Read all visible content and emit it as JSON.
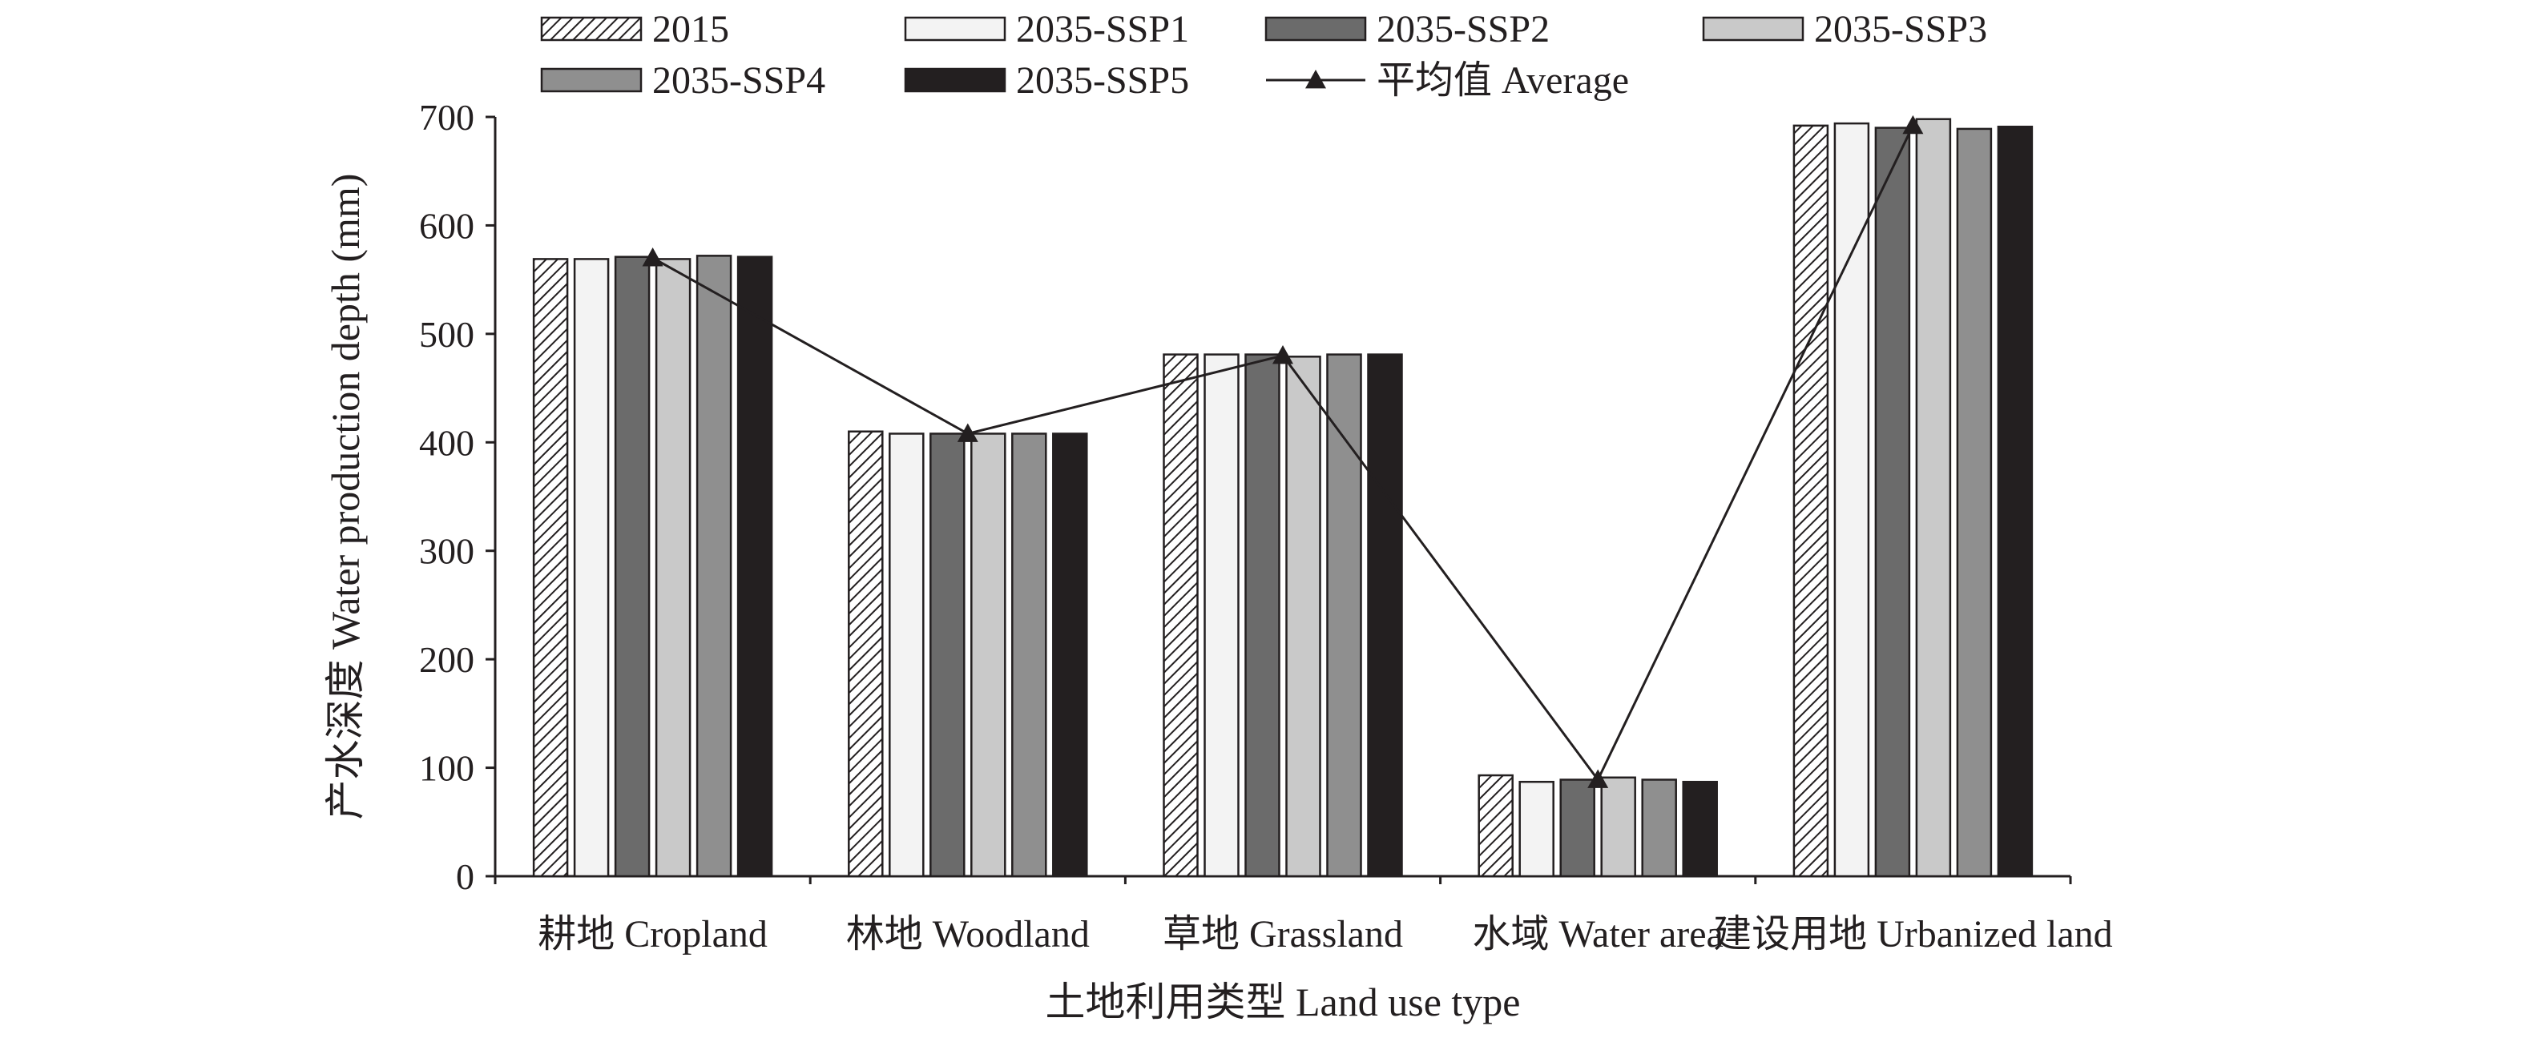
{
  "chart_data": {
    "type": "bar",
    "title": "",
    "xlabel": "土地利用类型 Land use type",
    "ylabel": "产水深度 Water production depth (mm)",
    "ylim": [
      0,
      700
    ],
    "yticks": [
      0,
      100,
      200,
      300,
      400,
      500,
      600,
      700
    ],
    "grid": false,
    "legend_position": "top",
    "categories": [
      "耕地 Cropland",
      "林地 Woodland",
      "草地 Grassland",
      "水域 Water area",
      "建设用地 Urbanized land"
    ],
    "series": [
      {
        "name": "2015",
        "values": [
          569,
          410,
          481,
          93,
          692
        ],
        "style": "hatch",
        "color": "#ffffff"
      },
      {
        "name": "2035-SSP1",
        "values": [
          569,
          408,
          481,
          87,
          694
        ],
        "style": "solid",
        "color": "#f3f3f3"
      },
      {
        "name": "2035-SSP2",
        "values": [
          571,
          408,
          481,
          89,
          690
        ],
        "style": "solid",
        "color": "#6b6b6b"
      },
      {
        "name": "2035-SSP3",
        "values": [
          569,
          408,
          479,
          91,
          698
        ],
        "style": "solid",
        "color": "#c9c9c9"
      },
      {
        "name": "2035-SSP4",
        "values": [
          572,
          408,
          481,
          89,
          689
        ],
        "style": "solid",
        "color": "#8f8f8f"
      },
      {
        "name": "2035-SSP5",
        "values": [
          571,
          408,
          481,
          87,
          691
        ],
        "style": "solid",
        "color": "#231f20"
      }
    ],
    "line_series": {
      "name": "平均值 Average",
      "values": [
        570,
        408,
        480,
        89,
        692
      ],
      "color": "#231f20",
      "marker": "triangle"
    }
  }
}
